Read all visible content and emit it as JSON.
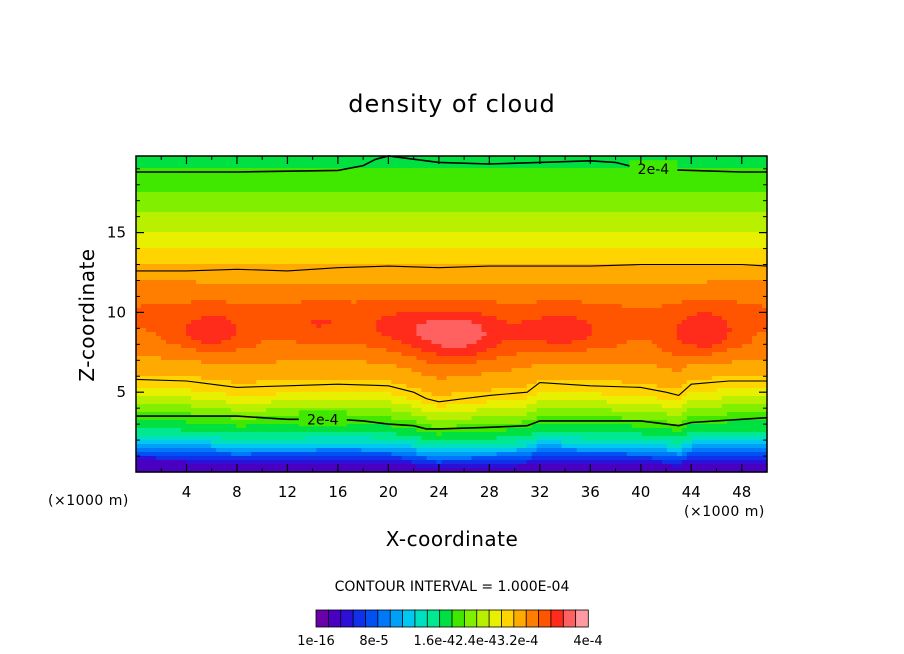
{
  "chart_data": {
    "type": "heatmap",
    "title": "density of cloud",
    "xlabel": "X-coordinate",
    "ylabel": "Z-coordinate",
    "x_unit": "(×1000 m)",
    "y_unit": "(×1000 m)",
    "xlim": [
      0,
      50
    ],
    "ylim": [
      0,
      19.8
    ],
    "x_ticks": [
      4,
      8,
      12,
      16,
      20,
      24,
      28,
      32,
      36,
      40,
      44,
      48
    ],
    "x_tick_labels": [
      "4",
      "8",
      "12",
      "16",
      "20",
      "24",
      "28",
      "32",
      "36",
      "40",
      "44",
      "48"
    ],
    "y_ticks": [
      5,
      10,
      15
    ],
    "y_tick_labels": [
      "5",
      "10",
      "15"
    ],
    "contour_interval_text": "CONTOUR INTERVAL = 1.000E-04",
    "contour_lines": [
      {
        "level": "2e-4",
        "label": "2e-4",
        "x": [
          0,
          8,
          12,
          16,
          18,
          20,
          22,
          23,
          24,
          28,
          31,
          32,
          40,
          42,
          43,
          44,
          48,
          50
        ],
        "z": [
          3.5,
          3.5,
          3.3,
          3.3,
          3.2,
          3.0,
          2.9,
          2.7,
          2.7,
          2.8,
          2.9,
          3.2,
          3.2,
          3.0,
          2.9,
          3.1,
          3.3,
          3.4
        ],
        "label_x": 14.8
      },
      {
        "level": "3e-4",
        "label": "",
        "x": [
          0,
          4,
          7,
          8,
          12,
          16,
          20,
          22,
          23,
          24,
          28,
          31,
          32,
          36,
          40,
          42,
          43,
          44,
          47,
          50
        ],
        "z": [
          5.8,
          5.7,
          5.4,
          5.3,
          5.4,
          5.5,
          5.4,
          5.0,
          4.6,
          4.4,
          4.8,
          5.0,
          5.6,
          5.4,
          5.3,
          5.0,
          4.8,
          5.5,
          5.7,
          5.7
        ],
        "label_x": null
      },
      {
        "level": "3e-4",
        "label": "",
        "x": [
          0,
          4,
          8,
          12,
          16,
          20,
          24,
          28,
          32,
          36,
          40,
          44,
          48,
          50
        ],
        "z": [
          12.6,
          12.6,
          12.7,
          12.6,
          12.8,
          12.9,
          12.8,
          12.9,
          12.9,
          12.9,
          13.0,
          13.0,
          13.0,
          12.9
        ],
        "label_x": null
      },
      {
        "level": "2e-4",
        "label": "2e-4",
        "x": [
          0,
          8,
          16,
          18,
          19,
          20,
          22,
          24,
          28,
          32,
          36,
          38,
          40,
          44,
          48,
          50
        ],
        "z": [
          18.8,
          18.8,
          18.9,
          19.2,
          19.6,
          19.8,
          19.6,
          19.4,
          19.3,
          19.4,
          19.5,
          19.4,
          19.0,
          18.9,
          18.8,
          18.8
        ],
        "label_x": 41
      }
    ],
    "color_scale": {
      "min_label": "1e-16",
      "labels": [
        "1e-16",
        "8e-5",
        "1.6e-4",
        "2.4e-4",
        "3.2e-4",
        "4e-4"
      ],
      "printed_labels": [
        "1e-16",
        "8e-5",
        "1.6e-42.4e-43.2e-4",
        "4e-4"
      ],
      "levels": [
        0,
        2e-05,
        4e-05,
        6e-05,
        8e-05,
        0.0001,
        0.00012,
        0.00014,
        0.00016,
        0.00018,
        0.0002,
        0.00022,
        0.00024,
        0.00026,
        0.00028,
        0.0003,
        0.00032,
        0.00034,
        0.00036,
        0.00038,
        0.0004
      ],
      "colors": [
        "#6a00a8",
        "#4a00c0",
        "#2c10d8",
        "#1030ea",
        "#0050f4",
        "#0078fa",
        "#00a0f8",
        "#00c8f0",
        "#00e0c0",
        "#00e890",
        "#00e040",
        "#40e800",
        "#80f000",
        "#b8f000",
        "#e8f000",
        "#ffd400",
        "#ffaa00",
        "#ff7e00",
        "#ff5400",
        "#ff2c1c",
        "#ff6060",
        "#ff9aa0"
      ]
    },
    "vertical_profile": {
      "z": [
        0.5,
        1.0,
        1.5,
        2.0,
        2.5,
        3.0,
        4.0,
        5.0,
        6.0,
        7.0,
        8.0,
        9.0,
        10.0,
        11.0,
        12.0,
        13.0,
        14.0,
        15.0,
        16.0,
        17.0,
        18.0,
        19.0,
        19.8
      ],
      "value": [
        1.5e-05,
        6e-05,
        0.00011,
        0.00015,
        0.00018,
        0.0002,
        0.00024,
        0.00028,
        0.000305,
        0.00032,
        0.000335,
        0.00034,
        0.000342,
        0.000335,
        0.000318,
        0.0003,
        0.00028,
        0.00026,
        0.000245,
        0.00023,
        0.000215,
        0.0002,
        0.00019
      ]
    },
    "maxima": [
      {
        "x": 6,
        "z": 8.8,
        "sx": 2.8,
        "sz": 1.2,
        "amp": 3.5e-05
      },
      {
        "x": 14.5,
        "z": 9.3,
        "sx": 3.2,
        "sz": 1.0,
        "amp": 2e-05
      },
      {
        "x": 21,
        "z": 9.0,
        "sx": 3.0,
        "sz": 1.3,
        "amp": 2.5e-05
      },
      {
        "x": 25.5,
        "z": 8.6,
        "sx": 3.3,
        "sz": 1.5,
        "amp": 5.5e-05
      },
      {
        "x": 33.5,
        "z": 8.8,
        "sx": 3.8,
        "sz": 1.2,
        "amp": 3.5e-05
      },
      {
        "x": 45,
        "z": 8.7,
        "sx": 2.6,
        "sz": 1.4,
        "amp": 4e-05
      }
    ],
    "grid": false,
    "legend": "bottom colorbar"
  }
}
